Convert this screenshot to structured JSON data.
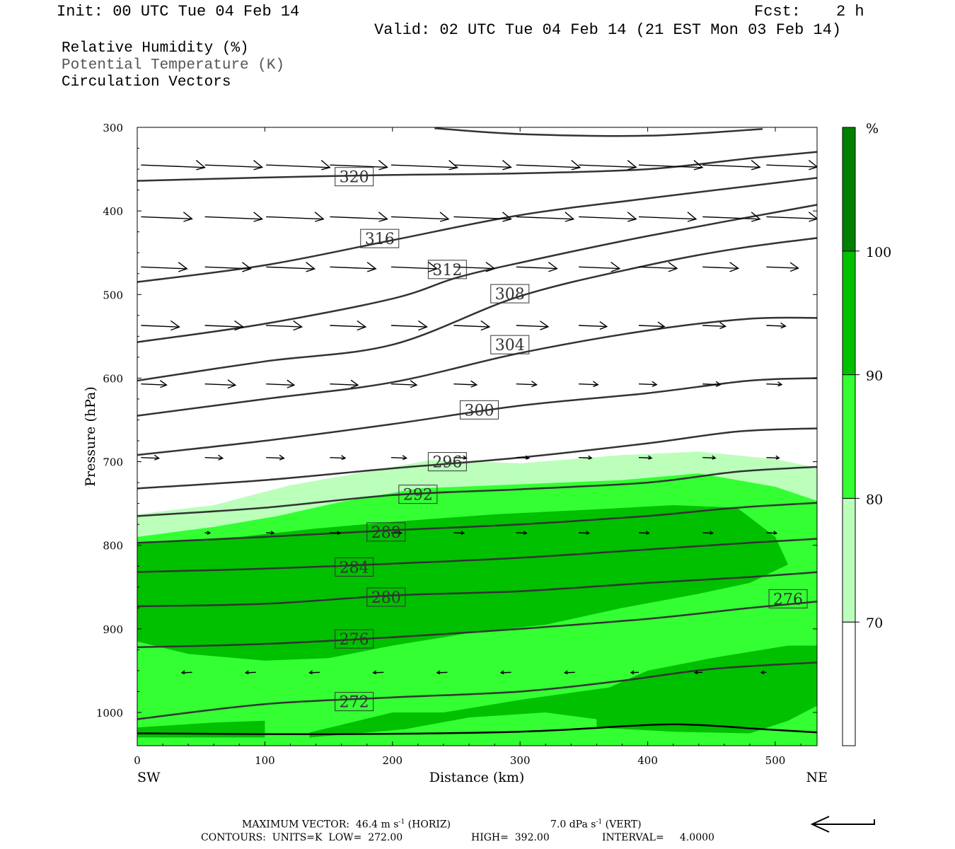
{
  "header": {
    "init": "Init: 00 UTC Tue 04 Feb 14",
    "fcst_label": "Fcst:",
    "fcst_value": "2 h",
    "valid": "Valid: 02 UTC Tue 04 Feb 14 (21 EST Mon 03 Feb 14)"
  },
  "legend": {
    "rh": "Relative Humidity (%)",
    "theta": "Potential Temperature (K)",
    "vectors": "Circulation Vectors"
  },
  "footer": {
    "line1_a": "MAXIMUM VECTOR:  46.4 m s",
    "line1_a_sup": "-1",
    "line1_b": " (HORIZ)",
    "line1_c": "7.0 dPa s",
    "line1_c_sup": "-1",
    "line1_d": " (VERT)",
    "line2_a": "CONTOURS:  UNITS=K  LOW=  272.00",
    "line2_b": "HIGH=  392.00",
    "line2_c": "INTERVAL=     4.0000"
  },
  "colors": {
    "rh70": "#bbffbb",
    "rh80": "#33ff33",
    "rh90": "#00c000",
    "rh100": "#008000",
    "contour": "#333333",
    "grey_text": "#555555"
  },
  "chart_data": {
    "type": "cross-section",
    "xlabel": "Distance (km)",
    "ylabel": "Pressure (hPa)",
    "x_ticks": [
      0,
      100,
      200,
      300,
      400,
      500
    ],
    "y_ticks": [
      300,
      400,
      500,
      600,
      700,
      800,
      900,
      1000
    ],
    "xlim": [
      0,
      535
    ],
    "ylim_hPa": [
      300,
      1040
    ],
    "x_end_labels": {
      "left": "SW",
      "right": "NE"
    },
    "colorbar": {
      "unit": "%",
      "levels": [
        70,
        80,
        90,
        100
      ],
      "colors": [
        "#ffffff",
        "#bbffbb",
        "#33ff33",
        "#00c000",
        "#008000"
      ]
    },
    "theta_contours": [
      {
        "value": 272,
        "label": "272",
        "points": [
          [
            0,
            1008
          ],
          [
            100,
            990
          ],
          [
            200,
            982
          ],
          [
            300,
            975
          ],
          [
            380,
            962
          ],
          [
            450,
            948
          ],
          [
            535,
            940
          ]
        ],
        "labels_at": [
          [
            170,
            987
          ]
        ]
      },
      {
        "value": 276,
        "label": "276",
        "points": [
          [
            0,
            922
          ],
          [
            100,
            918
          ],
          [
            200,
            910
          ],
          [
            300,
            900
          ],
          [
            400,
            888
          ],
          [
            480,
            875
          ],
          [
            535,
            867
          ]
        ],
        "labels_at": [
          [
            170,
            912
          ],
          [
            510,
            864
          ]
        ]
      },
      {
        "value": 280,
        "label": "280",
        "points": [
          [
            0,
            873
          ],
          [
            100,
            870
          ],
          [
            200,
            860
          ],
          [
            300,
            855
          ],
          [
            400,
            845
          ],
          [
            480,
            838
          ],
          [
            535,
            832
          ]
        ],
        "labels_at": [
          [
            195,
            862
          ]
        ]
      },
      {
        "value": 284,
        "label": "284",
        "points": [
          [
            0,
            832
          ],
          [
            100,
            828
          ],
          [
            200,
            822
          ],
          [
            300,
            815
          ],
          [
            400,
            805
          ],
          [
            480,
            797
          ],
          [
            535,
            792
          ]
        ],
        "labels_at": [
          [
            170,
            826
          ]
        ]
      },
      {
        "value": 288,
        "label": "288",
        "points": [
          [
            0,
            797
          ],
          [
            100,
            790
          ],
          [
            200,
            782
          ],
          [
            300,
            775
          ],
          [
            400,
            765
          ],
          [
            470,
            755
          ],
          [
            535,
            749
          ]
        ],
        "labels_at": [
          [
            195,
            784
          ]
        ]
      },
      {
        "value": 292,
        "label": "292",
        "points": [
          [
            0,
            765
          ],
          [
            100,
            755
          ],
          [
            200,
            740
          ],
          [
            300,
            733
          ],
          [
            400,
            725
          ],
          [
            470,
            712
          ],
          [
            535,
            706
          ]
        ],
        "labels_at": [
          [
            220,
            739
          ]
        ]
      },
      {
        "value": 296,
        "label": "296",
        "points": [
          [
            0,
            732
          ],
          [
            100,
            722
          ],
          [
            200,
            708
          ],
          [
            300,
            695
          ],
          [
            400,
            678
          ],
          [
            470,
            664
          ],
          [
            535,
            660
          ]
        ],
        "labels_at": [
          [
            243,
            700
          ]
        ]
      },
      {
        "value": 300,
        "label": "300",
        "points": [
          [
            0,
            692
          ],
          [
            100,
            675
          ],
          [
            200,
            655
          ],
          [
            300,
            633
          ],
          [
            400,
            618
          ],
          [
            480,
            603
          ],
          [
            535,
            600
          ]
        ],
        "labels_at": [
          [
            268,
            638
          ]
        ]
      },
      {
        "value": 304,
        "label": "304",
        "points": [
          [
            0,
            645
          ],
          [
            100,
            625
          ],
          [
            200,
            605
          ],
          [
            300,
            570
          ],
          [
            400,
            543
          ],
          [
            480,
            529
          ],
          [
            535,
            528
          ]
        ],
        "labels_at": [
          [
            292,
            560
          ]
        ]
      },
      {
        "value": 308,
        "label": "308",
        "points": [
          [
            0,
            603
          ],
          [
            100,
            580
          ],
          [
            200,
            560
          ],
          [
            300,
            502
          ],
          [
            400,
            465
          ],
          [
            470,
            445
          ],
          [
            535,
            432
          ]
        ],
        "labels_at": [
          [
            292,
            499
          ]
        ]
      },
      {
        "value": 312,
        "label": "312",
        "points": [
          [
            0,
            557
          ],
          [
            100,
            535
          ],
          [
            200,
            505
          ],
          [
            250,
            480
          ],
          [
            300,
            462
          ],
          [
            400,
            430
          ],
          [
            535,
            392
          ]
        ],
        "labels_at": [
          [
            243,
            470
          ]
        ]
      },
      {
        "value": 316,
        "label": "316",
        "points": [
          [
            0,
            485
          ],
          [
            100,
            465
          ],
          [
            200,
            435
          ],
          [
            300,
            405
          ],
          [
            400,
            385
          ],
          [
            535,
            360
          ]
        ],
        "labels_at": [
          [
            190,
            433
          ]
        ]
      },
      {
        "value": 320,
        "label": "320",
        "points": [
          [
            0,
            364
          ],
          [
            100,
            360
          ],
          [
            200,
            357
          ],
          [
            300,
            355
          ],
          [
            400,
            350
          ],
          [
            480,
            337
          ],
          [
            535,
            329
          ]
        ],
        "labels_at": [
          [
            170,
            359
          ]
        ]
      },
      {
        "value": 324,
        "label": "",
        "points": [
          [
            233,
            301
          ],
          [
            300,
            308
          ],
          [
            400,
            310
          ],
          [
            490,
            302
          ]
        ],
        "labels_at": []
      }
    ],
    "rh_regions": [
      {
        "level": ">=70",
        "points": [
          [
            0,
            763
          ],
          [
            60,
            752
          ],
          [
            120,
            728
          ],
          [
            180,
            712
          ],
          [
            230,
            698
          ],
          [
            300,
            702
          ],
          [
            380,
            692
          ],
          [
            440,
            688
          ],
          [
            500,
            697
          ],
          [
            535,
            708
          ],
          [
            535,
            1040
          ],
          [
            0,
            1040
          ]
        ]
      },
      {
        "level": ">=80",
        "points": [
          [
            0,
            790
          ],
          [
            60,
            778
          ],
          [
            110,
            765
          ],
          [
            160,
            748
          ],
          [
            220,
            732
          ],
          [
            300,
            727
          ],
          [
            380,
            722
          ],
          [
            440,
            714
          ],
          [
            500,
            730
          ],
          [
            535,
            748
          ],
          [
            535,
            1040
          ],
          [
            0,
            1040
          ]
        ]
      },
      {
        "level": ">=90",
        "points": [
          [
            0,
            797
          ],
          [
            80,
            790
          ],
          [
            140,
            780
          ],
          [
            200,
            772
          ],
          [
            280,
            763
          ],
          [
            360,
            757
          ],
          [
            420,
            752
          ],
          [
            470,
            755
          ],
          [
            500,
            790
          ],
          [
            510,
            823
          ],
          [
            480,
            845
          ],
          [
            440,
            858
          ],
          [
            380,
            875
          ],
          [
            320,
            895
          ],
          [
            260,
            905
          ],
          [
            200,
            920
          ],
          [
            150,
            935
          ],
          [
            100,
            938
          ],
          [
            40,
            930
          ],
          [
            0,
            915
          ]
        ]
      },
      {
        "level": ">=90",
        "points": [
          [
            135,
            1024
          ],
          [
            200,
            1000
          ],
          [
            240,
            1000
          ],
          [
            300,
            985
          ],
          [
            370,
            970
          ],
          [
            400,
            950
          ],
          [
            450,
            935
          ],
          [
            510,
            920
          ],
          [
            535,
            920
          ],
          [
            535,
            990
          ],
          [
            510,
            1010
          ],
          [
            480,
            1025
          ],
          [
            420,
            1023
          ],
          [
            360,
            1018
          ],
          [
            360,
            1008
          ],
          [
            320,
            1000
          ],
          [
            260,
            1006
          ],
          [
            210,
            1020
          ],
          [
            135,
            1030
          ]
        ]
      },
      {
        "level": ">=90",
        "points": [
          [
            0,
            1018
          ],
          [
            60,
            1012
          ],
          [
            100,
            1010
          ],
          [
            100,
            1030
          ],
          [
            0,
            1030
          ]
        ]
      }
    ],
    "vector_rows": [
      {
        "p": 345,
        "vectors": [
          [
            0,
            50
          ],
          [
            50,
            45
          ],
          [
            98,
            50
          ],
          [
            148,
            45
          ],
          [
            196,
            52
          ],
          [
            245,
            45
          ],
          [
            294,
            50
          ],
          [
            343,
            45
          ],
          [
            390,
            50
          ],
          [
            440,
            45
          ],
          [
            490,
            40
          ]
        ]
      },
      {
        "p": 407,
        "vectors": [
          [
            0,
            40
          ],
          [
            50,
            45
          ],
          [
            98,
            45
          ],
          [
            148,
            45
          ],
          [
            196,
            45
          ],
          [
            245,
            45
          ],
          [
            294,
            45
          ],
          [
            343,
            45
          ],
          [
            390,
            45
          ],
          [
            440,
            45
          ],
          [
            490,
            40
          ]
        ]
      },
      {
        "p": 467,
        "vectors": [
          [
            0,
            36
          ],
          [
            50,
            36
          ],
          [
            98,
            38
          ],
          [
            148,
            36
          ],
          [
            196,
            36
          ],
          [
            245,
            32
          ],
          [
            294,
            32
          ],
          [
            343,
            32
          ],
          [
            390,
            30
          ],
          [
            440,
            28
          ],
          [
            490,
            25
          ]
        ]
      },
      {
        "p": 537,
        "vectors": [
          [
            0,
            30
          ],
          [
            50,
            30
          ],
          [
            98,
            28
          ],
          [
            148,
            28
          ],
          [
            196,
            28
          ],
          [
            245,
            28
          ],
          [
            294,
            25
          ],
          [
            343,
            22
          ],
          [
            390,
            20
          ],
          [
            440,
            18
          ],
          [
            490,
            15
          ]
        ]
      },
      {
        "p": 607,
        "vectors": [
          [
            0,
            20
          ],
          [
            50,
            24
          ],
          [
            98,
            22
          ],
          [
            148,
            22
          ],
          [
            196,
            20
          ],
          [
            245,
            18
          ],
          [
            294,
            16
          ],
          [
            343,
            15
          ],
          [
            390,
            14
          ],
          [
            440,
            14
          ],
          [
            490,
            12
          ]
        ]
      },
      {
        "p": 695,
        "vectors": [
          [
            0,
            14
          ],
          [
            50,
            14
          ],
          [
            98,
            14
          ],
          [
            148,
            12
          ],
          [
            196,
            12
          ],
          [
            245,
            10
          ],
          [
            294,
            10
          ],
          [
            343,
            10
          ],
          [
            390,
            10
          ],
          [
            440,
            10
          ],
          [
            490,
            10
          ]
        ]
      },
      {
        "p": 785,
        "vectors": [
          [
            50,
            4
          ],
          [
            98,
            6
          ],
          [
            148,
            8
          ],
          [
            196,
            8
          ],
          [
            245,
            8
          ],
          [
            294,
            8
          ],
          [
            343,
            8
          ],
          [
            390,
            8
          ],
          [
            440,
            8
          ],
          [
            490,
            8
          ]
        ]
      },
      {
        "p": 952,
        "vectors": [
          [
            40,
            -8
          ],
          [
            90,
            -8
          ],
          [
            140,
            -8
          ],
          [
            190,
            -8
          ],
          [
            240,
            -8
          ],
          [
            290,
            -8
          ],
          [
            340,
            -8
          ],
          [
            390,
            -6
          ],
          [
            440,
            -6
          ],
          [
            490,
            -4
          ]
        ]
      }
    ],
    "surface_line": [
      [
        0,
        1025
      ],
      [
        150,
        1026
      ],
      [
        300,
        1023
      ],
      [
        400,
        1015
      ],
      [
        440,
        1015
      ],
      [
        490,
        1020
      ],
      [
        535,
        1024
      ]
    ]
  }
}
